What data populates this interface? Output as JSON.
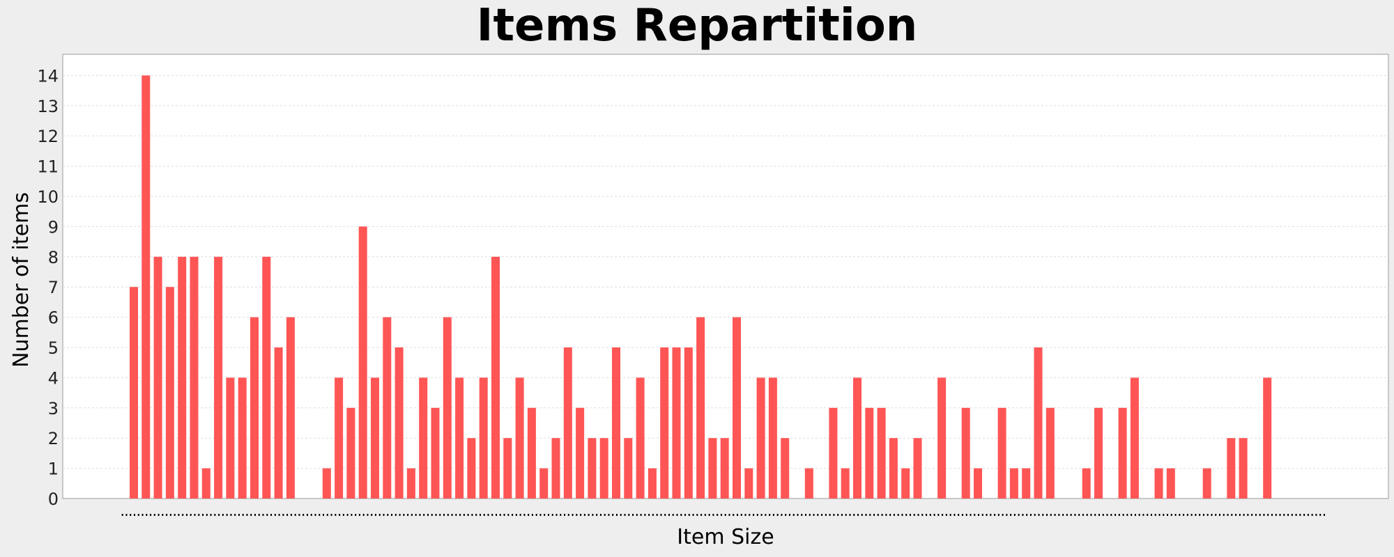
{
  "chart_data": {
    "type": "bar",
    "title": "Items Repartition",
    "xlabel": "Item Size",
    "ylabel": "Number of items",
    "ylim": [
      0,
      14.7
    ],
    "yticks": [
      0,
      1,
      2,
      3,
      4,
      5,
      6,
      7,
      8,
      9,
      10,
      11,
      12,
      13,
      14
    ],
    "grid": true,
    "bar_color": "#ff5555",
    "x_tick_labels_visible": false,
    "values": [
      7,
      14,
      8,
      7,
      8,
      8,
      1,
      8,
      4,
      4,
      6,
      8,
      5,
      6,
      0,
      0,
      1,
      4,
      3,
      9,
      4,
      6,
      5,
      1,
      4,
      3,
      6,
      4,
      2,
      4,
      8,
      2,
      4,
      3,
      1,
      2,
      5,
      3,
      2,
      2,
      5,
      2,
      4,
      1,
      5,
      5,
      5,
      6,
      2,
      2,
      6,
      1,
      4,
      4,
      2,
      0,
      1,
      0,
      3,
      1,
      4,
      3,
      3,
      2,
      1,
      2,
      0,
      4,
      0,
      3,
      1,
      0,
      3,
      1,
      1,
      5,
      3,
      0,
      0,
      1,
      3,
      0,
      3,
      4,
      0,
      1,
      1,
      0,
      0,
      1,
      0,
      2,
      2,
      0,
      4,
      0,
      0,
      0,
      0,
      0
    ]
  }
}
